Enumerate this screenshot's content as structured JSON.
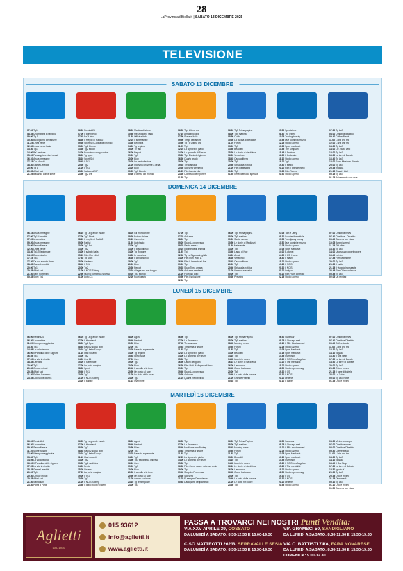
{
  "header": {
    "page": "28",
    "meta_a": "LaProvinciadiBiella.it",
    "meta_b": "SABATO 13 DICEMBRE 2025"
  },
  "section_title": "TELEVISIONE",
  "channels": [
    {
      "name": "Rai 1",
      "logo": "rai1-logo",
      "color": "#0a7fd0"
    },
    {
      "name": "Rai 2",
      "logo": "rai2-logo",
      "color": "#d62a1f"
    },
    {
      "name": "Rai 3",
      "logo": "rai3-logo",
      "color": "#1f9d3a"
    },
    {
      "name": "Rete 4",
      "logo": "rete4-logo",
      "color": "#f39a1a"
    },
    {
      "name": "Canale 5",
      "logo": "canale5-logo",
      "color": "#1e73c7"
    },
    {
      "name": "Italia 1",
      "logo": "italia1-logo",
      "color": "#0a6fb8"
    },
    {
      "name": "La7",
      "logo": "la7-logo",
      "color": "#1d5ea8"
    }
  ],
  "days": [
    {
      "label": "SABATO 13 DICEMBRE",
      "columns": [
        [
          "07.00|Tg1",
          "08.35|Unomattina in famiglia",
          "09.00|Tg 1",
          "10.30|Buongiorno Benessere",
          "11.25|Linea verde",
          "12.30|Linea verde Italia",
          "13.30|Tg1",
          "14.00|Ba' centrale",
          "15.00|Passaggio a Nord ovest",
          "16.10|A sua immagine",
          "17.15|Cio Mecchi",
          "18.40|Game L'eredità",
          "20.00|Tg 1",
          "20.35|Affari tuoi",
          "21.25|Ballando con le stelle"
        ],
        [
          "06.00|Rewind 24",
          "07.00|Il portinreno",
          "07.45|Fa' il vivo",
          "08.30|Il meglio di Radio2",
          "09.30|Sport Sci Coppa del mondo",
          "13.00|Tg2 Giorno",
          "13.30|Tg2 Motori",
          "14.00|Eurovision song contest",
          "18.00|Tg sport",
          "18.10|Sport Sci",
          "19.45|Il 911",
          "20.30|Tg2",
          "21.20|Il 911",
          "23.00|Sabato al 90°",
          "23.50|Tg2 ore"
        ],
        [
          "08.00|Mattina di storia",
          "10.40|Mezzogiorno italia",
          "11.30|Officina Italia",
          "12.25|Il settimanale",
          "13.30|Bell'Italia",
          "14.00|Tg regione",
          "15.00|Tv talk",
          "16.00|Report",
          "19.00|Tg3",
          "20.00|Blob",
          "20.20|La centodieciore",
          "21.20|Indovina chi viene a cena",
          "23.20|Blob",
          "00.05|Tg3 Mondo",
          "00.30|L'offerta del mondo"
        ],
        [
          "06.50|Tg4 Ultima ora",
          "07.10|Anticiamo oggi",
          "07.50|Stasera Italia",
          "09.50|Tempi dell'amore",
          "10.50|Tg Tg Ultima ora",
          "11.55|Tg4",
          "12.25|La signora in giallo",
          "14.00|Lo sportello di Forum",
          "15.30|Tg4 Diario del giorno",
          "16.30|Quarto grado",
          "19.00|Tg4",
          "19.35|Terra amara",
          "20.30|4 di sera weekend",
          "21.25|Film La mia vita",
          "23.30|Confessione reporter",
          "01.55|Tg4"
        ],
        [
          "06.00|Tg5 Prima pagina",
          "08.00|Tg5 mattina",
          "08.50|Ciò fa",
          "10.30|La cucina di Mediaset",
          "11.00|Forum",
          "13.00|Tg5",
          "13.40|Beautiful",
          "15.30|Le storie di via divina",
          "16.00|Verissimo",
          "18.45|Caduta libera",
          "20.00|Tg5",
          "20.40|Striscia la notizia",
          "21.20|Film Liebeskind",
          "01.00|Tg5",
          "01.55|Il mediaemodo speciale"
        ],
        [
          "07.50|Spedizione",
          "08.40|Tra i ribelli",
          "10.05|Trading beauty",
          "10.55|Due uomini a mezzo",
          "12.25|Studio aperto",
          "13.05|Sport mediaset",
          "13.45|The Simpson",
          "15.45|Il Santone",
          "16.30|Il Coderato",
          "18.10|Studio aperto",
          "19.20|Tg5",
          "19.40|Il Medio",
          "21.20|Film Il grande inizio",
          "23.35|Film Relevo",
          "01.50|Studio aperto"
        ],
        [
          "07.00|Tg La7",
          "08.00|Omnibus dibattito",
          "09.40|Coffee Break",
          "11.00|L'aria che tira",
          "12.00|L'aria che tira",
          "13.30|Tg La7",
          "14.00|Lie - tutto vero",
          "15.00|Tg La7",
          "16.00|Le torri di Babele",
          "16.40|Tg La7",
          "18.00|Eden Missione Pianeta",
          "20.00|Tg La7",
          "20.35|In onda",
          "21.15|Grand Hotel",
          "00.15|Tg La7",
          "01.25|Anicamente con vista"
        ]
      ]
    },
    {
      "label": "DOMENICA 14 DICEMBRE",
      "columns": [
        [
          "06.15|A sua immagine",
          "07.00|Tg1 Linea blu",
          "07.20|Unomattina",
          "09.20|A sua immagine",
          "10.00|Santa Messa",
          "12.20|Linea verde",
          "13.30|Tg1 Telegiornale",
          "14.00|Domenica In",
          "17.15|Tg1",
          "17.20|Da noi a ruota libera",
          "18.45|Game L'eredità",
          "20.00|Tg1",
          "20.35|Affari tuoi",
          "21.30|Sant Sorrentino",
          "00.45|Spec Tg1"
        ],
        [
          "06.10|Tg La grande estate",
          "07.00|Tg2 Storie",
          "08.15|Il meglio di Radio2",
          "09.00|Patrizi",
          "10.00|Tg2 Sci",
          "13.00|Tg2",
          "14.00|Il sabato Italia",
          "15.15|Film Pier Libel",
          "17.45|Tg sport",
          "18.00|Gedetse",
          "18.40|Il 911",
          "20.00|Tg2",
          "21.00|Il NCIS Sidney",
          "22.50|Nuova Domenica sportiva",
          "01.00|Lotto Cs"
        ],
        [
          "08.05|Gli mondo rotte",
          "09.30|Futura chiese",
          "10.15|Overdrive",
          "11.30|Gotchado",
          "12.00|Tg3",
          "13.00|Il posto giusto",
          "14.00|Tg Regione",
          "14.30|In mezz'ora",
          "16.30|Il cercamondo",
          "19.00|Tg3",
          "20.00|Blob",
          "20.30|Report",
          "23.10|Allegre ma non troppo",
          "00.05|Tg3 Mondo",
          "02.20|Fuori orario"
        ],
        [
          "07.00|Tg4",
          "07.25|A di sera",
          "08.00|Tg4",
          "09.20|Soap La promessa",
          "09.25|Santa messa",
          "10.25|Il ponte degli animali",
          "11.55|Tg4",
          "12.30|Tg La Signora in giallo",
          "14.00|Film Fiorì Willy D.",
          "16.40|Film Il lamento e i fiori",
          "19.00|Tg4",
          "19.35|Soap Terra amara",
          "20.30|A di sera weekend",
          "21.20|Fuori dal coro",
          "00.50|Film Esplosione",
          "02.30|Tg4"
        ],
        [
          "06.00|Tg5 Prima pagina",
          "08.00|Tg5 mattina",
          "10.00|Santa messa",
          "10.50|Le storie di Mediaset",
          "11.50|Melaverde",
          "13.00|Tg5",
          "13.40|L'arca di Noè",
          "14.00|Amici",
          "16.30|Verissimo",
          "18.45|Caduta libera",
          "20.00|Tg5",
          "20.40|Striscia la notizia",
          "21.20|Il nuovo scenario",
          "00.00|Tg5",
          "00.30|Pressing"
        ],
        [
          "07.05|Tom e Jerry",
          "08.30|Scooter the middle",
          "09.55|Trendjakey tracey",
          "10.50|Due uomini e mezzo",
          "12.25|Studio aperto",
          "13.05|Sport Mediaset",
          "14.00|E-planet",
          "14.30|Il CSI House",
          "16.40|Il Flash",
          "18.20|Studio aperto",
          "19.25|Il NCIS",
          "20.30|Il NCIS",
          "21.20|Lady oc",
          "00.20|Film Fuori controllo",
          "02.15|Studio aperto"
        ],
        [
          "07.00|Omnibus news",
          "07.40|Omnibus - Dibattito",
          "09.40|Camera con vista",
          "10.05|Ameni surreal",
          "11.15|Gift bliss",
          "13.30|Tg La7",
          "14.00|Uno sguardo partecipare",
          "16.40|Lui der",
          "17.45|Film Mat home",
          "20.00|Tg La7",
          "20.35|Il matto",
          "21.15|Il viaggio incessante",
          "23.45|Film Orlando danza",
          "00.45|Tg La7",
          "02.05|Un rendez"
        ]
      ]
    },
    {
      "label": "LUNEDÌ 15 DICEMBRE",
      "columns": [
        [
          "06.00|Rewind24",
          "06.30|Unomattina",
          "11.00|Il tempo maggiorata",
          "13.30|Tg1",
          "14.05|La volta buona",
          "16.00|Il Paradiso delle Signore",
          "16.55|Tg1",
          "17.00|La vita in diretta",
          "18.45|L'eredità",
          "20.00|Tg1",
          "20.30|Cinque minuti",
          "20.35|Affari tuoi",
          "21.30|Felicer Sanremo",
          "23.35|Doc Storie di vera"
        ],
        [
          "06.05|Tg La grande estate",
          "07.00|Il Heartland",
          "08.00|Tg2 Sport",
          "08.45|Radio2 social club",
          "10.10|Tg2 Italia Europa",
          "11.10|I fari vocanti",
          "13.00|Tg2",
          "14.00|Ore 14",
          "15.20|Il Stelemale",
          "17.00|La porta magica",
          "18.30|Sport",
          "19.40|Il 911",
          "20.30|Tg2",
          "21.20|Il NCIS Sidney",
          "23.20|Il battale"
        ],
        [
          "08.00|Agorà",
          "09.40|Restart",
          "10.50|Elisir",
          "12.00|Tg3",
          "13.20|Passato e presente",
          "14.00|Tg regione",
          "15.45|Cliffo Italia",
          "17.00|Geo",
          "19.00|Tg3",
          "20.00|Blob",
          "20.40|Il cavallo e la torre",
          "20.50|Un posto al sole",
          "21.20|Lo stato delle cose",
          "24.00|Tg3",
          "01.15|Overdrive"
        ],
        [
          "06.50|Tg4",
          "07.00|La Promessa",
          "07.45|Terra amara",
          "10.45|Tempesta d'amore",
          "11.55|Tg4",
          "12.25|La signora in giallo",
          "14.00|Lo sportello di Forum",
          "15.30|Tg4",
          "16.50|Carosi del giorno",
          "16.30|Film Stati di Magnola il delo",
          "19.00|Tg4",
          "19.40|Soap La promessa",
          "20.30|4 di sera",
          "21.25|Quarta Repubblica"
        ],
        [
          "06.00|Tg5 Prima Pagina",
          "08.00|Tg5 mattina",
          "08.45|Morning news",
          "10.55|Forum",
          "11.55|Tg5",
          "13.00|Beautiful",
          "14.10|Tg5",
          "14.45|Uomini e donne",
          "16.15|Le storie di via divina",
          "16.00|L'avventuri",
          "16.45|Come Catturata",
          "20.00|Tg5",
          "20.40|La ruota della fortuna",
          "21.20|Grande Fratello",
          "00.35|Tg5"
        ],
        [
          "06.50|Supercar",
          "08.25|Il Chicago med",
          "10.10|Il FBI: Most wanted",
          "12.25|Studio Aperto",
          "13.05|Sport Mediaset",
          "13.15|Sport mediaset",
          "14.45|I Simpson",
          "15.20|Il NCIS Los Angeles",
          "17.20|Il The mentalist",
          "18.20|Studio aperto",
          "18.50|Studio aperto mag",
          "19.30|Il CSI",
          "20.30|Il NCIS",
          "21.20|Le Iene",
          "01.10|Il planet"
        ],
        [
          "07.00|Omnibus news",
          "07.40|Omnibus Dibattito",
          "09.40|Coffee break",
          "11.00|L'aria che tira",
          "13.30|Tg La7",
          "14.10|Tagadà",
          "16.40|Il Gra Negri",
          "17.00|Le torri di Babele",
          "18.50|La torre di Babele",
          "20.00|Tg La7",
          "20.35|Otto e mezzo",
          "21.15|Il torre di babele",
          "22.00|La 7 dos",
          "00.00|Tg La7 Notte",
          "01.35|Otto e mezzo"
        ]
      ]
    },
    {
      "label": "MARTEDÌ 16 DICEMBRE",
      "columns": [
        [
          "06.00|Rewind24",
          "06.30|Unomattina",
          "09.20|Santa Messa",
          "11.10|Storie italiane",
          "12.00|Il tempo maggiorata",
          "13.30|Tg1",
          "14.05|La volta buona",
          "16.00|Il Paradiso delle signore",
          "17.05|La vita in diretta",
          "18.45|Game L'eredità",
          "20.00|Tg1",
          "20.30|Cinque minuti",
          "20.35|Affari tuoi",
          "21.30|Sandokan",
          "23.40|Porta a Porta"
        ],
        [
          "06.05|Tg La grande estate",
          "07.00|Il Heartland",
          "08.30|Tg2",
          "08.45|Radio2 social club",
          "10.10|Tg2 Italia Europa",
          "11.10|I fari vocanti",
          "13.00|Tg2",
          "13.30|Tg2 medicina",
          "14.00|Fenix",
          "15.20|Sistema",
          "17.20|La porta magica",
          "19.00|Il 911",
          "20.30|Tg2",
          "21.20|Il NCIS Sidney",
          "23.40|Il giallo booth system"
        ],
        [
          "08.00|Agorà",
          "09.40|Restart",
          "10.50|Elisir",
          "12.00|Tg3",
          "13.25|Passato e presente",
          "14.00|Tg3",
          "14.50|Tg3 fotografica impresa",
          "16.10|Geo",
          "19.00|Tg3",
          "20.00|Blob",
          "20.30|Il cavallo e la torre",
          "20.50|Un posto al sole",
          "21.20|Amore e mimosa",
          "23.10|Tg remimposite",
          "24.00|Tg3"
        ],
        [
          "06.50|Tg4",
          "07.00|La Promessa",
          "08.40|Ma Nome mia Bedrey",
          "10.45|Tempesta d'amore",
          "11.55|Tg4",
          "12.25|La signora in giallo",
          "14.00|Lo sportello di Forum",
          "15.30|Tg4",
          "16.30|Film Come nasce nei enzo amici",
          "19.00|Tg4",
          "19.40|Soap La Promessa",
          "20.30|4 di sera",
          "21.25|E' sempre Cartabianca",
          "00.45|Dalla parte degli animali"
        ],
        [
          "06.00|Tg5 Prima Pagina",
          "08.00|Tg5 mattina",
          "08.45|Morning news",
          "10.55|Forum",
          "11.55|Tg5",
          "13.00|Beautiful",
          "14.10|Tg5",
          "14.45|Uomini e donne",
          "16.10|Le storie di via divina",
          "16.00|L'avventuri",
          "16.45|Come Catturata",
          "20.00|Tg5",
          "20.40|La ruota della fortuna",
          "21.20|Le notte nel cuore",
          "23.30|Tg5"
        ],
        [
          "06.50|Supercar",
          "08.25|Il Chicago med",
          "10.20|Il FBI: most wanted",
          "12.25|Studio Aperto",
          "13.05|Sport Mediaset",
          "13.10|Sport mediaset",
          "14.45|I Simpson",
          "15.20|Il NCIS Los Angeles",
          "17.20|Il The mentalist",
          "18.20|Studio aperto",
          "18.50|Studio aperto mag",
          "19.30|Il CSI",
          "20.30|Il NCIS",
          "21.20|Le iene",
          "01.55|Studio aperto"
        ],
        [
          "06.00|Meteo oroscopo",
          "07.00|Omnibus news",
          "08.00|Omnibus Dibattito",
          "09.40|Coffee break",
          "11.00|L'aria che tira",
          "13.30|Tg La7",
          "14.10|Tagadà",
          "16.40|Il Gra Negri",
          "17.00|La torre di Babele",
          "18.50|Ignoto X",
          "20.00|Tg La7",
          "20.35|Otto e mezzo",
          "21.15|Di martedì",
          "00.10|Tg La7",
          "01.10|Otto e mezzo",
          "01.50|Camera con vista"
        ]
      ]
    }
  ],
  "ad": {
    "logo": "Aglietti",
    "logo_sub": "DAL 1910",
    "phone": "015 93612",
    "email": "info@aglietti.it",
    "web": "www.aglietti.it",
    "headline_a": "PASSA A TROVARCI",
    "headline_b": "NEI NOSTRI",
    "headline_c": "Punti Vendita:",
    "stores": [
      {
        "addr_a": "VIA XXV APRILE 39,",
        "addr_b": "COSSATO",
        "hours": "DA LUNEDÌ A SABATO: 8.30-12.30 E 15.00-19.30"
      },
      {
        "addr_a": "VIA GRAMSCI 50,",
        "addr_b": "SANDIGLIANO",
        "hours": "DA LUNEDÌ A SABATO: 8.30-12.30 E 15.30-19.30"
      },
      {
        "addr_a": "C.SO MATTEOTTI 262/B,",
        "addr_b": "SERRAVALLE SESIA",
        "hours": "DA LUNEDÌ A SABATO: 8.30-12.30 E 15.30-19.30"
      },
      {
        "addr_a": "VIA C. BATTISTI 74/A,",
        "addr_b": "FARA NOVARESE",
        "hours": "DA LUNEDÌ A SABATO: 8.30-12.30 E 15.30-19.30\nDOMENICA: 9.00-12.30"
      }
    ]
  }
}
